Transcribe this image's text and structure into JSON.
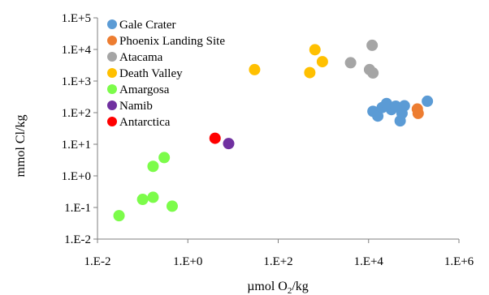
{
  "chart_data": {
    "type": "scatter",
    "x_axis": {
      "label_main": "µmol O",
      "label_sub": "2",
      "label_tail": "/kg",
      "scale": "log",
      "range": [
        0.01,
        1000000
      ],
      "ticks": [
        {
          "value": 0.01,
          "label": "1.E-2"
        },
        {
          "value": 1,
          "label": "1.E+0"
        },
        {
          "value": 100,
          "label": "1.E+2"
        },
        {
          "value": 10000,
          "label": "1.E+4"
        },
        {
          "value": 1000000,
          "label": "1.E+6"
        }
      ]
    },
    "y_axis": {
      "label": "mmol Cl/kg",
      "scale": "log",
      "range": [
        0.01,
        100000
      ],
      "ticks": [
        {
          "value": 0.01,
          "label": "1.E-2"
        },
        {
          "value": 0.1,
          "label": "1.E-1"
        },
        {
          "value": 1,
          "label": "1.E+0"
        },
        {
          "value": 10,
          "label": "1.E+1"
        },
        {
          "value": 100,
          "label": "1.E+2"
        },
        {
          "value": 1000,
          "label": "1.E+3"
        },
        {
          "value": 10000,
          "label": "1.E+4"
        },
        {
          "value": 100000,
          "label": "1.E+5"
        }
      ]
    },
    "grid": false,
    "legend_placement": "top-left",
    "series": [
      {
        "name": "Gale Crater",
        "color": "#5B9BD5",
        "points": [
          [
            12500,
            110
          ],
          [
            16000,
            78
          ],
          [
            20000,
            145
          ],
          [
            25000,
            195
          ],
          [
            32000,
            125
          ],
          [
            40000,
            160
          ],
          [
            50000,
            55
          ],
          [
            55000,
            95
          ],
          [
            62000,
            165
          ],
          [
            200000,
            230
          ]
        ]
      },
      {
        "name": "Phoenix Landing Site",
        "color": "#ED7D31",
        "points": [
          [
            120000,
            130
          ],
          [
            125000,
            95
          ]
        ]
      },
      {
        "name": "Atacama",
        "color": "#A5A5A5",
        "points": [
          [
            4000,
            3800
          ],
          [
            10500,
            2300
          ],
          [
            12500,
            1800
          ],
          [
            12000,
            13500
          ]
        ]
      },
      {
        "name": "Death Valley",
        "color": "#FFC000",
        "points": [
          [
            30,
            2300
          ],
          [
            500,
            1850
          ],
          [
            650,
            9800
          ],
          [
            950,
            4100
          ]
        ]
      },
      {
        "name": "Amargosa",
        "color": "#7CFC4A",
        "points": [
          [
            0.03,
            0.055
          ],
          [
            0.1,
            0.18
          ],
          [
            0.17,
            0.21
          ],
          [
            0.17,
            2.0
          ],
          [
            0.3,
            3.8
          ],
          [
            0.45,
            0.11
          ]
        ]
      },
      {
        "name": "Namib",
        "color": "#7030A0",
        "points": [
          [
            8,
            10.5
          ]
        ]
      },
      {
        "name": "Antarctica",
        "color": "#FF0000",
        "points": [
          [
            4,
            15.5
          ]
        ]
      }
    ]
  }
}
